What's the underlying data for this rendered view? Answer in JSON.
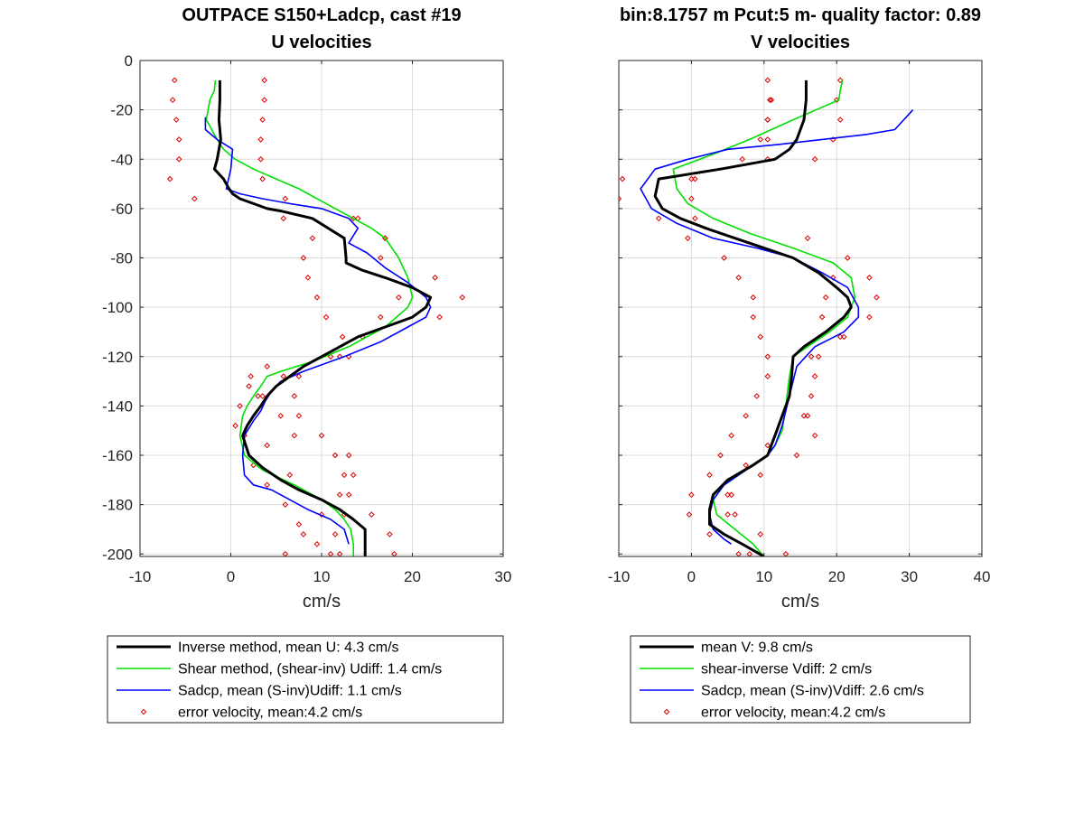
{
  "chart_data": [
    {
      "type": "line",
      "title": [
        "OUTPACE S150+Ladcp, cast #19",
        "U velocities"
      ],
      "xlabel": "cm/s",
      "ylabel": "",
      "xlim": [
        -10,
        30
      ],
      "ylim": [
        -201,
        0
      ],
      "xticks": [
        -10,
        0,
        10,
        20,
        30
      ],
      "yticks": [
        0,
        -20,
        -40,
        -60,
        -80,
        -100,
        -120,
        -140,
        -160,
        -180,
        -200
      ],
      "grid": true,
      "legend_position": "below-axes",
      "series": [
        {
          "name": "Inverse method, mean U:  4.3 cm/s",
          "color": "#000000",
          "marker": "none",
          "x": [
            -1.2,
            -1.2,
            -1.3,
            -1.1,
            -1.5,
            -1.8,
            -0.8,
            -0.2,
            0.2,
            1.0,
            2.5,
            4.0,
            5.5,
            9.0,
            12.5,
            12.7,
            12.7,
            14.5,
            17.0,
            20.0,
            22.0,
            21.5,
            20.0,
            17.0,
            14.0,
            11.0,
            8.0,
            6.5,
            5.0,
            4.0,
            3.3,
            2.5,
            1.8,
            1.3,
            2.0,
            3.5,
            5.5,
            7.5,
            10.0,
            12.0,
            13.5,
            14.8,
            14.8
          ],
          "y": [
            -8,
            -16,
            -24,
            -32,
            -40,
            -44,
            -48,
            -52,
            -54,
            -56,
            -58,
            -60,
            -61,
            -64,
            -72,
            -80,
            -82,
            -85,
            -88,
            -92,
            -96,
            -100,
            -104,
            -108,
            -112,
            -118,
            -124,
            -128,
            -132,
            -136,
            -140,
            -144,
            -148,
            -152,
            -160,
            -165,
            -170,
            -174,
            -178,
            -182,
            -186,
            -190,
            -201
          ]
        },
        {
          "name": "Shear method, (shear-inv)  Udiff:  1.4 cm/s",
          "color": "#00e000",
          "marker": "none",
          "x": [
            -1.7,
            -1.8,
            -2.3,
            -2.7,
            -1.5,
            -0.8,
            0.5,
            2.5,
            5.0,
            7.5,
            10.5,
            13.5,
            15.5,
            17.0,
            18.5,
            19.5,
            20.0,
            19.5,
            17.0,
            13.0,
            9.0,
            5.5,
            4.0,
            3.3,
            2.5,
            1.8,
            1.3,
            1.0,
            1.5,
            3.5,
            7.0,
            10.0,
            11.5,
            12.5,
            13.2,
            13.5,
            13.5
          ],
          "y": [
            -8,
            -12,
            -16,
            -24,
            -32,
            -36,
            -40,
            -44,
            -48,
            -52,
            -58,
            -64,
            -68,
            -72,
            -80,
            -88,
            -96,
            -100,
            -108,
            -116,
            -122,
            -126,
            -128,
            -132,
            -136,
            -140,
            -144,
            -152,
            -160,
            -166,
            -172,
            -178,
            -182,
            -186,
            -190,
            -196,
            -201
          ]
        },
        {
          "name": "Sadcp, mean (S-inv)Udiff: 1.1 cm/s",
          "color": "#0000ff",
          "marker": "none",
          "x": [
            -2.8,
            -2.8,
            -1.5,
            0.2,
            0.0,
            -0.5,
            1.0,
            3.5,
            6.5,
            10.0,
            13.0,
            14.0,
            13.0,
            15.0,
            17.0,
            19.5,
            21.5,
            22.0,
            21.5,
            19.5,
            16.5,
            12.5,
            8.0,
            5.5,
            4.5,
            3.8,
            3.3,
            2.5,
            1.5,
            1.3,
            1.5,
            2.5,
            4.5,
            6.5,
            8.5,
            11.0,
            12.5,
            13.0
          ],
          "y": [
            -23,
            -28,
            -32,
            -36,
            -44,
            -52,
            -54,
            -56,
            -58,
            -60,
            -64,
            -68,
            -74,
            -78,
            -84,
            -90,
            -96,
            -100,
            -104,
            -108,
            -114,
            -120,
            -126,
            -130,
            -134,
            -138,
            -142,
            -146,
            -152,
            -160,
            -168,
            -172,
            -174,
            -178,
            -182,
            -186,
            -190,
            -196
          ]
        }
      ],
      "error_velocity": {
        "name": "error velocity, mean:4.2 cm/s",
        "color": "#dd0000",
        "marker": "diamond",
        "left": {
          "x": [
            -6.2,
            -6.4,
            -6.0,
            -5.7,
            -5.7,
            -6.7,
            -4.0,
            5.8,
            9.0,
            8.0,
            8.5,
            9.5,
            10.5,
            12.3,
            12.0,
            5.8,
            7.0,
            7.5,
            10.0,
            13.0,
            13.5,
            12.0,
            10.0,
            8.0,
            6.0,
            4.0,
            2.0,
            1.0,
            0.5,
            4.0,
            2.5,
            4.0,
            6.0,
            7.5,
            9.5,
            11.0,
            13.0
          ],
          "y": [
            -8,
            -16,
            -24,
            -32,
            -40,
            -48,
            -56,
            -64,
            -72,
            -80,
            -88,
            -96,
            -104,
            -112,
            -120,
            -128,
            -136,
            -144,
            -152,
            -160,
            -168,
            -176,
            -184,
            -192,
            -200,
            -124,
            -132,
            -140,
            -148,
            -156,
            -164,
            -172,
            -180,
            -188,
            -196,
            -200,
            -202
          ]
        },
        "right": {
          "x": [
            3.7,
            3.7,
            3.5,
            3.3,
            3.3,
            3.5,
            6.0,
            13.5,
            17.0,
            16.5,
            22.5,
            18.5,
            16.5,
            14.5,
            13.0,
            2.2,
            3.0,
            5.5,
            7.0,
            11.5,
            12.5,
            13.0,
            12.5,
            11.5,
            12.0,
            14.0,
            11.0,
            17.0,
            23.0,
            25.5,
            7.5,
            3.5,
            1.5,
            6.5,
            15.5,
            17.5,
            18.0
          ],
          "y": [
            -8,
            -16,
            -24,
            -32,
            -40,
            -48,
            -56,
            -64,
            -72,
            -80,
            -88,
            -96,
            -104,
            -112,
            -120,
            -128,
            -136,
            -144,
            -152,
            -160,
            -168,
            -176,
            -184,
            -192,
            -200,
            -64,
            -120,
            -72,
            -104,
            -96,
            -128,
            -136,
            -152,
            -168,
            -184,
            -192,
            -200
          ]
        }
      }
    },
    {
      "type": "line",
      "title": [
        "bin:8.1757 m  Pcut:5 m- quality factor:  0.89",
        "V velocities"
      ],
      "xlabel": "cm/s",
      "ylabel": "",
      "xlim": [
        -10,
        40
      ],
      "ylim": [
        -201,
        0
      ],
      "xticks": [
        -10,
        0,
        10,
        20,
        30,
        40
      ],
      "yticks": [
        0,
        -20,
        -40,
        -60,
        -80,
        -100,
        -120,
        -140,
        -160,
        -180,
        -200
      ],
      "grid": true,
      "legend_position": "below-axes",
      "series": [
        {
          "name": "mean V:  9.8 cm/s",
          "color": "#000000",
          "marker": "none",
          "x": [
            15.8,
            15.8,
            15.5,
            14.5,
            13.5,
            11.5,
            4.0,
            -4.5,
            -5.0,
            -4.0,
            -1.5,
            2.0,
            6.0,
            10.0,
            14.0,
            17.5,
            20.0,
            21.5,
            22.0,
            21.0,
            18.5,
            15.5,
            14.0,
            13.8,
            13.5,
            12.5,
            11.5,
            11.0,
            10.5,
            8.5,
            5.0,
            3.0,
            2.5,
            2.5,
            4.5,
            7.0,
            10.0
          ],
          "y": [
            -8,
            -16,
            -24,
            -32,
            -36,
            -40,
            -44,
            -48,
            -55,
            -60,
            -64,
            -68,
            -72,
            -76,
            -80,
            -86,
            -92,
            -96,
            -100,
            -104,
            -110,
            -116,
            -120,
            -128,
            -136,
            -144,
            -152,
            -156,
            -160,
            -164,
            -170,
            -176,
            -182,
            -188,
            -192,
            -196,
            -201
          ]
        },
        {
          "name": "shear-inverse Vdiff:  2 cm/s",
          "color": "#00e000",
          "marker": "none",
          "x": [
            20.8,
            20.5,
            20.3,
            14.0,
            8.0,
            3.0,
            -2.5,
            -2.0,
            -0.5,
            3.0,
            8.0,
            14.0,
            19.5,
            22.0,
            22.5,
            21.5,
            19.0,
            16.0,
            14.0,
            13.5,
            13.0,
            12.5,
            11.5,
            10.5,
            7.5,
            4.5,
            3.0,
            3.5,
            6.0,
            8.5,
            10.0
          ],
          "y": [
            -8,
            -12,
            -16,
            -24,
            -32,
            -38,
            -44,
            -52,
            -58,
            -64,
            -70,
            -76,
            -82,
            -88,
            -96,
            -104,
            -110,
            -116,
            -120,
            -128,
            -140,
            -150,
            -156,
            -160,
            -166,
            -172,
            -178,
            -184,
            -190,
            -196,
            -201
          ]
        },
        {
          "name": "Sadcp, mean (S-inv)Vdiff: 2.6 cm/s",
          "color": "#0000ff",
          "marker": "none",
          "x": [
            30.5,
            28.0,
            24.0,
            18.0,
            12.0,
            5.0,
            -0.5,
            -5.0,
            -7.0,
            -5.5,
            -2.0,
            3.0,
            9.0,
            14.0,
            18.0,
            21.5,
            23.0,
            23.0,
            21.0,
            17.0,
            14.5,
            13.5,
            12.5,
            11.5,
            10.5,
            7.5,
            4.5,
            3.0,
            2.5,
            3.0,
            4.5,
            5.5
          ],
          "y": [
            -20,
            -28,
            -30,
            -32,
            -34,
            -36,
            -40,
            -44,
            -52,
            -60,
            -66,
            -72,
            -76,
            -80,
            -86,
            -92,
            -100,
            -104,
            -110,
            -116,
            -124,
            -136,
            -148,
            -156,
            -160,
            -166,
            -172,
            -178,
            -184,
            -190,
            -194,
            -196
          ]
        }
      ],
      "error_velocity": {
        "name": "error velocity, mean:4.2 cm/s",
        "color": "#dd0000",
        "marker": "diamond",
        "left": {
          "x": [
            10.5,
            10.8,
            10.5,
            9.5,
            7.0,
            -9.5,
            -10.0,
            -4.5,
            -0.5,
            4.5,
            6.5,
            8.5,
            8.5,
            9.5,
            10.5,
            10.5,
            9.0,
            7.5,
            5.5,
            4.0,
            2.5,
            0.0,
            -0.3,
            2.5,
            6.5,
            11.0,
            10.5,
            10.5,
            10.5
          ],
          "y": [
            -8,
            -16,
            -24,
            -32,
            -40,
            -48,
            -56,
            -64,
            -72,
            -80,
            -88,
            -96,
            -104,
            -112,
            -120,
            -128,
            -136,
            -144,
            -152,
            -160,
            -168,
            -176,
            -184,
            -192,
            -200,
            -16,
            -24,
            -32,
            -40
          ]
        },
        "right": {
          "x": [
            20.5,
            20.0,
            20.5,
            19.5,
            17.0,
            0.5,
            0.0,
            0.5,
            16.0,
            21.5,
            19.5,
            18.5,
            18.0,
            21.0,
            17.5,
            17.0,
            16.5,
            16.0,
            17.0,
            14.5,
            9.5,
            5.0,
            5.0,
            9.5,
            13.0,
            0.0,
            24.5,
            25.5,
            24.5,
            20.5,
            16.5,
            15.5,
            10.5,
            7.5,
            5.5,
            6.0,
            8.0
          ],
          "y": [
            -8,
            -16,
            -24,
            -32,
            -40,
            -48,
            -56,
            -64,
            -72,
            -80,
            -88,
            -96,
            -104,
            -112,
            -120,
            -128,
            -136,
            -144,
            -152,
            -160,
            -168,
            -176,
            -184,
            -192,
            -200,
            -48,
            -88,
            -96,
            -104,
            -112,
            -120,
            -144,
            -156,
            -164,
            -176,
            -184,
            -200
          ]
        }
      }
    }
  ],
  "legends": [
    {
      "entries": [
        {
          "style": "black-thick",
          "label": "Inverse method, mean U:  4.3 cm/s"
        },
        {
          "style": "green",
          "label": "Shear method, (shear-inv)  Udiff:  1.4 cm/s"
        },
        {
          "style": "blue",
          "label": "Sadcp, mean (S-inv)Udiff: 1.1 cm/s"
        },
        {
          "style": "red-diamond",
          "label": "error velocity, mean:4.2 cm/s"
        }
      ]
    },
    {
      "entries": [
        {
          "style": "black-thick",
          "label": "mean V:  9.8 cm/s"
        },
        {
          "style": "green",
          "label": "shear-inverse Vdiff:  2 cm/s"
        },
        {
          "style": "blue",
          "label": "Sadcp, mean (S-inv)Vdiff: 2.6 cm/s"
        },
        {
          "style": "red-diamond",
          "label": "error velocity, mean:4.2 cm/s"
        }
      ]
    }
  ]
}
